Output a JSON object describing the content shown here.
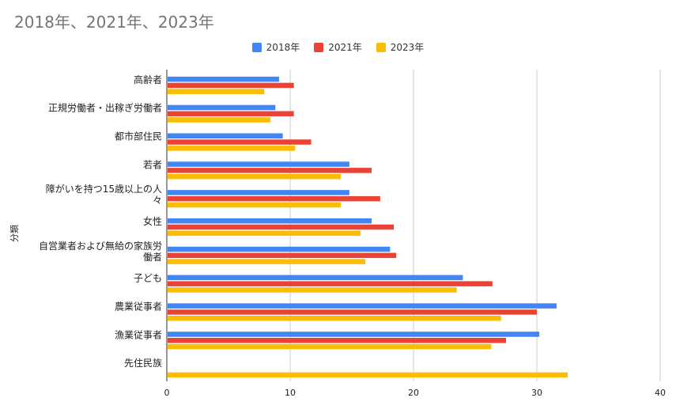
{
  "chart_data": {
    "type": "bar",
    "orientation": "horizontal",
    "title": "2018年、2021年、2023年",
    "xlabel": "",
    "ylabel": "分類",
    "xlim": [
      0,
      40
    ],
    "xticks": [
      0,
      10,
      20,
      30,
      40
    ],
    "grid": true,
    "legend_position": "top",
    "categories": [
      [
        "高齢者"
      ],
      [
        "正規労働者・出稼ぎ労働者"
      ],
      [
        "都市部住民"
      ],
      [
        "若者"
      ],
      [
        "障がいを持つ15歳以上の人",
        "々"
      ],
      [
        "女性"
      ],
      [
        "自営業者および無給の家族労",
        "働者"
      ],
      [
        "子ども"
      ],
      [
        "農業従事者"
      ],
      [
        "漁業従事者"
      ],
      [
        "先住民族"
      ]
    ],
    "series": [
      {
        "name": "2018年",
        "color": "#4285F4",
        "values": [
          9.1,
          8.8,
          9.4,
          14.8,
          14.8,
          16.6,
          18.1,
          24.0,
          31.6,
          30.2,
          null
        ]
      },
      {
        "name": "2021年",
        "color": "#EA4335",
        "values": [
          10.3,
          10.3,
          11.7,
          16.6,
          17.3,
          18.4,
          18.6,
          26.4,
          30.0,
          27.5,
          null
        ]
      },
      {
        "name": "2023年",
        "color": "#FBBC04",
        "values": [
          7.9,
          8.4,
          10.4,
          14.1,
          14.1,
          15.7,
          16.1,
          23.5,
          27.1,
          26.3,
          32.5
        ]
      }
    ]
  }
}
